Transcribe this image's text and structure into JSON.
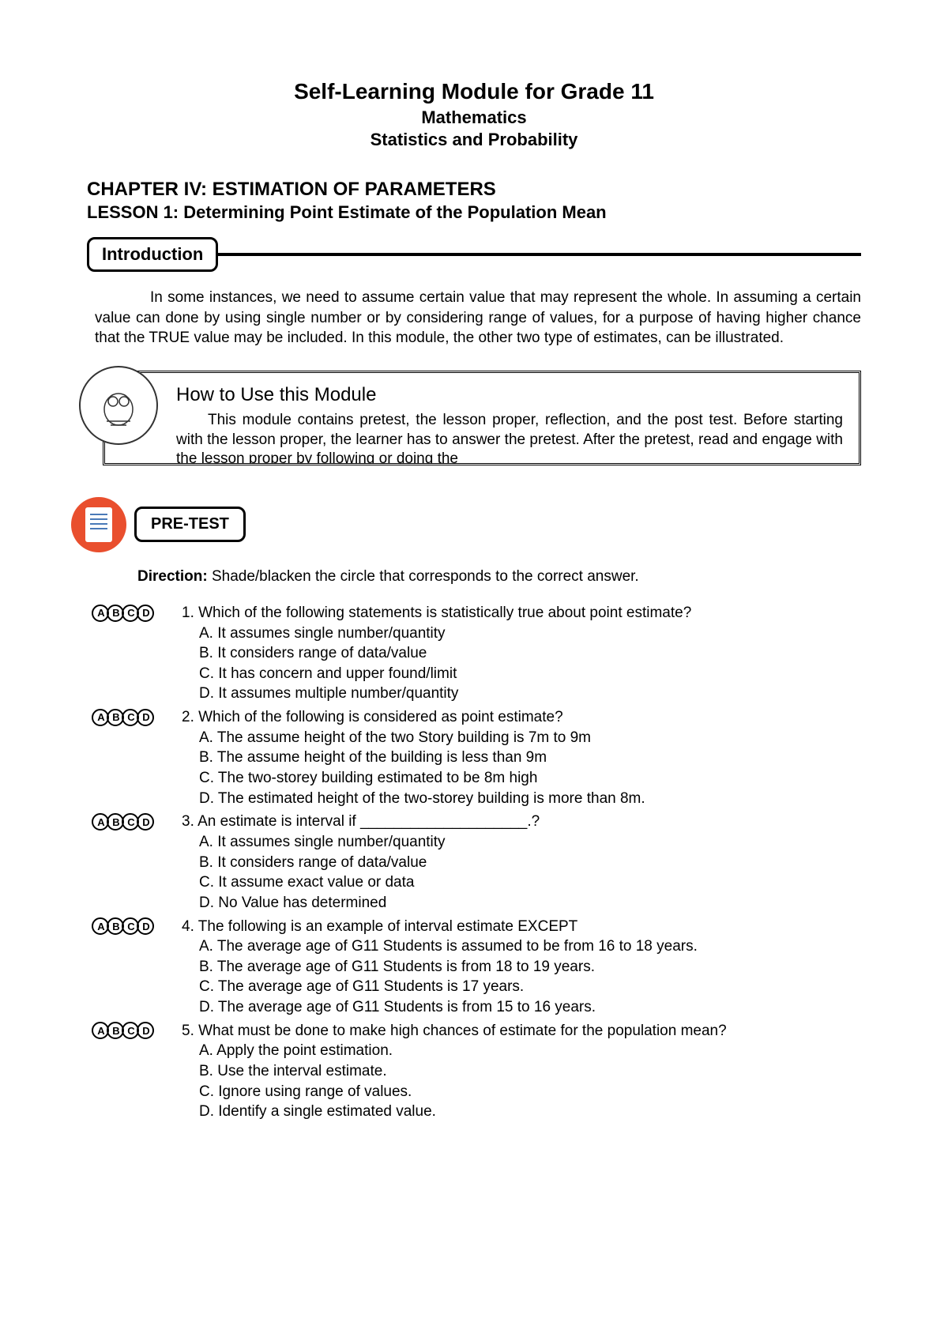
{
  "header": {
    "title": "Self-Learning Module for Grade 11",
    "subject": "Mathematics",
    "topic": "Statistics and Probability"
  },
  "chapter": "CHAPTER IV: ESTIMATION OF PARAMETERS",
  "lesson": "LESSON 1: Determining Point Estimate of the Population Mean",
  "intro": {
    "label": "Introduction",
    "text": "In some instances, we need to assume certain value that may represent the whole. In assuming a certain value can done by using single number or by considering range of values, for a purpose of having higher chance that the TRUE value may be included. In this module, the other two type of estimates, can be illustrated."
  },
  "howto": {
    "title": "How to Use this Module",
    "text": "This module contains pretest, the lesson proper, reflection, and the post test. Before starting with the lesson proper, the learner has to answer the pretest. After the pretest, read and engage with the lesson proper by following or doing the"
  },
  "pretest": {
    "label": "PRE-TEST",
    "direction_label": "Direction:",
    "direction_text": " Shade/blacken the circle that corresponds to the correct answer."
  },
  "bubble_letters": [
    "A",
    "B",
    "C",
    "D"
  ],
  "questions": [
    {
      "q": "1. Which of the following statements is statistically true about point estimate?",
      "opts": [
        "A. It assumes single number/quantity",
        "B. It considers range of data/value",
        "C. It has concern and upper found/limit",
        "D. It assumes multiple number/quantity"
      ]
    },
    {
      "q": "2. Which of the following is considered as point estimate?",
      "opts": [
        "A. The assume height of the two Story building is 7m to 9m",
        "B. The assume height of the building is less than 9m",
        "C. The two-storey building estimated to be 8m high",
        "D. The estimated height of the two-storey building is more than 8m."
      ]
    },
    {
      "q": "3. An estimate is interval if ____________________.?",
      "opts": [
        "A. It assumes single number/quantity",
        "B. It considers range of data/value",
        "C. It assume exact value or data",
        "D. No Value has determined"
      ]
    },
    {
      "q": "4. The following is an example of interval estimate EXCEPT",
      "opts": [
        "A.  The average age of G11 Students is assumed to be from 16 to 18 years.",
        "B.  The average age of G11 Students is from 18 to 19 years.",
        "C.  The average age of G11 Students is 17 years.",
        "D.  The average age of G11 Students is from 15 to 16 years."
      ]
    },
    {
      "q": "5. What must be done to make  high chances of estimate for the population mean?",
      "opts": [
        "A. Apply the point estimation.",
        "B. Use the interval estimate.",
        "C. Ignore using range of values.",
        "D. Identify a single estimated value."
      ]
    }
  ]
}
